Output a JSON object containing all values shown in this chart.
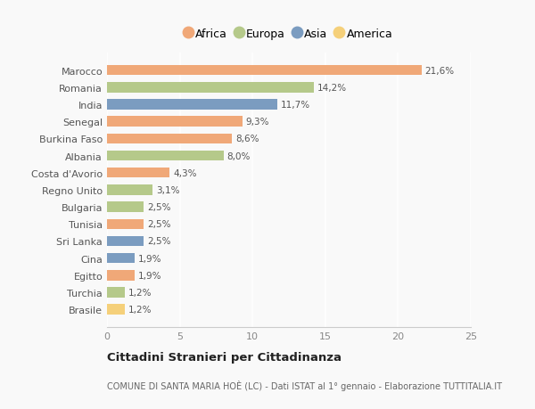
{
  "countries": [
    "Marocco",
    "Romania",
    "India",
    "Senegal",
    "Burkina Faso",
    "Albania",
    "Costa d'Avorio",
    "Regno Unito",
    "Bulgaria",
    "Tunisia",
    "Sri Lanka",
    "Cina",
    "Egitto",
    "Turchia",
    "Brasile"
  ],
  "values": [
    21.6,
    14.2,
    11.7,
    9.3,
    8.6,
    8.0,
    4.3,
    3.1,
    2.5,
    2.5,
    2.5,
    1.9,
    1.9,
    1.2,
    1.2
  ],
  "labels": [
    "21,6%",
    "14,2%",
    "11,7%",
    "9,3%",
    "8,6%",
    "8,0%",
    "4,3%",
    "3,1%",
    "2,5%",
    "2,5%",
    "2,5%",
    "1,9%",
    "1,9%",
    "1,2%",
    "1,2%"
  ],
  "continents": [
    "Africa",
    "Europa",
    "Asia",
    "Africa",
    "Africa",
    "Europa",
    "Africa",
    "Europa",
    "Europa",
    "Africa",
    "Asia",
    "Asia",
    "Africa",
    "Europa",
    "America"
  ],
  "colors": {
    "Africa": "#F0A878",
    "Europa": "#B5C98A",
    "Asia": "#7B9CC0",
    "America": "#F5D07A"
  },
  "legend_labels": [
    "Africa",
    "Europa",
    "Asia",
    "America"
  ],
  "title": "Cittadini Stranieri per Cittadinanza",
  "subtitle": "COMUNE DI SANTA MARIA HOÈ (LC) - Dati ISTAT al 1° gennaio - Elaborazione TUTTITALIA.IT",
  "xlim": [
    0,
    25
  ],
  "xticks": [
    0,
    5,
    10,
    15,
    20,
    25
  ],
  "background_color": "#f9f9f9",
  "grid_color": "#ffffff",
  "bar_height": 0.6
}
